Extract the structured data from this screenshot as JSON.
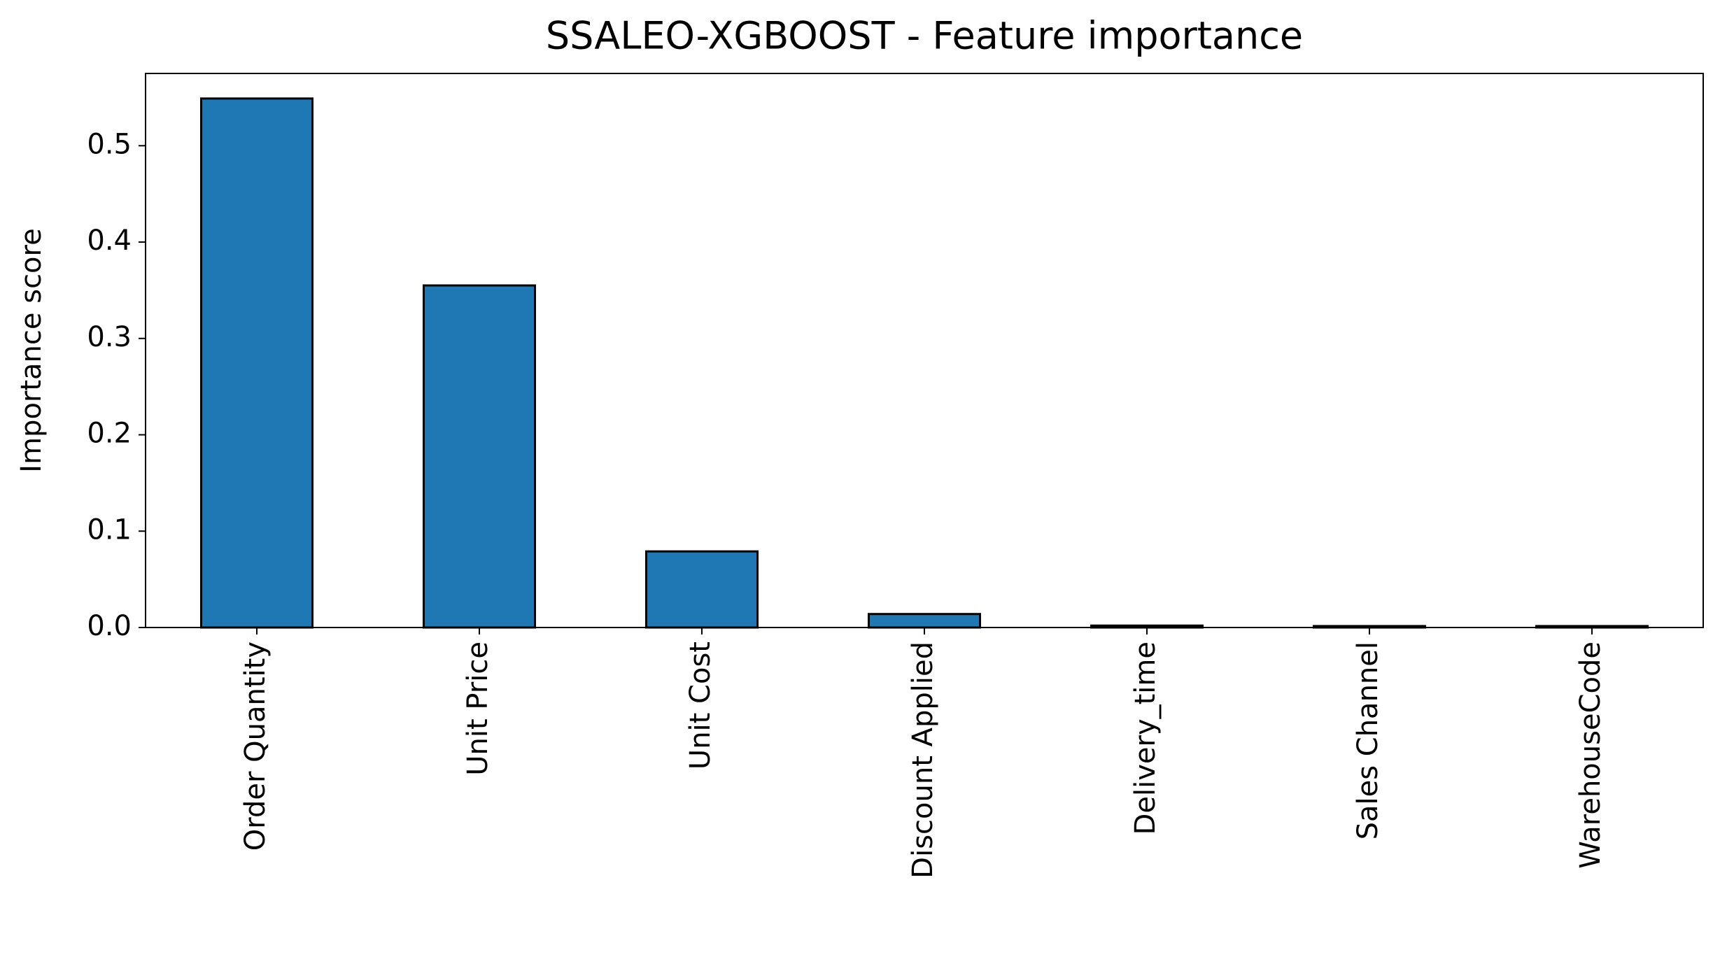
{
  "chart_data": {
    "type": "bar",
    "title": "SSALEO-XGBOOST - Feature importance",
    "y_label": "Importance score",
    "categories": [
      "Order Quantity",
      "Unit Price",
      "Unit Cost",
      "Discount Applied",
      "Delivery_time",
      "Sales Channel",
      "WarehouseCode"
    ],
    "values": [
      0.549,
      0.355,
      0.079,
      0.014,
      0.002,
      0.0015,
      0.0015
    ],
    "color": "#1f77b4",
    "ylim": [
      0,
      0.575
    ],
    "yticks": [
      {
        "value": 0,
        "label": "0.0"
      },
      0.1,
      0.2,
      0.3,
      0.4,
      0.5
    ],
    "grid": false
  }
}
